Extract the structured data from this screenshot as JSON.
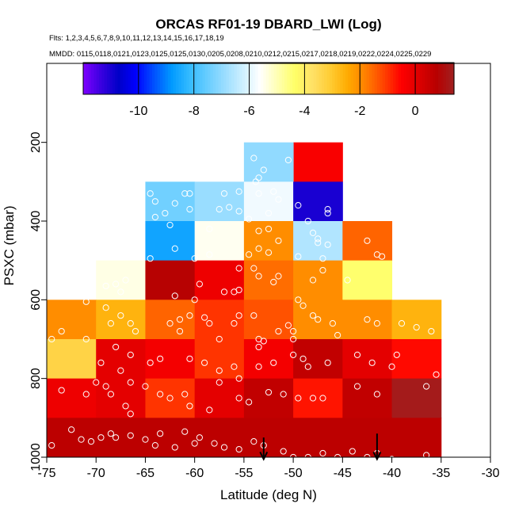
{
  "chart_data": {
    "type": "heatmap",
    "title": "ORCAS RF01-19 DBARD_LWI (Log)",
    "subtitle_flights": "Flts: 1,2,3,4,5,6,7,8,9,10,11,12,13,14,15,16,17,18,19",
    "subtitle_dates": "MMDD: 0115,0118,0121,0123,0125,0125,0130,0205,0208,0210,0212,0215,0217,0218,0219,0222,0224,0225,0229",
    "xlabel": "Latitude (deg N)",
    "ylabel": "PSXC (mbar)",
    "xlim": [
      -75,
      -30
    ],
    "ylim": [
      1000,
      100
    ],
    "y_inverted": true,
    "x_ticks": [
      -75,
      -70,
      -65,
      -60,
      -55,
      -50,
      -45,
      -40,
      -35,
      -30
    ],
    "x_tick_labels": [
      "-75",
      "-70",
      "-65",
      "-60",
      "-55",
      "-50",
      "-45",
      "-40",
      "-35",
      "-30"
    ],
    "y_ticks": [
      200,
      400,
      600,
      800,
      1000
    ],
    "y_tick_labels": [
      "200",
      "400",
      "600",
      "800",
      "1000"
    ],
    "colorbar": {
      "range": [
        -12,
        1.4
      ],
      "ticks": [
        -10,
        -8,
        -6,
        -4,
        -2,
        0
      ],
      "tick_labels": [
        "-10",
        "-8",
        "-6",
        "-4",
        "-2",
        "0"
      ],
      "colors": [
        "#7f00ff",
        "#3a00e0",
        "#0000c8",
        "#0000ff",
        "#0050ff",
        "#0099ff",
        "#33bbff",
        "#66ccff",
        "#99ddff",
        "#ccefff",
        "#ffffff",
        "#ffffb3",
        "#ffff66",
        "#ffe066",
        "#ffcc33",
        "#ffaa00",
        "#ff7f00",
        "#ff4400",
        "#ff0000",
        "#dd0000",
        "#b80000",
        "#a02020"
      ]
    },
    "cells": [
      {
        "x0": -50,
        "x1": -45,
        "y0": 200,
        "y1": 300,
        "value": -0.4
      },
      {
        "x0": -55,
        "x1": -50,
        "y0": 200,
        "y1": 300,
        "value": -7.0
      },
      {
        "x0": -65,
        "x1": -60,
        "y0": 300,
        "y1": 400,
        "value": -7.4
      },
      {
        "x0": -60,
        "x1": -55,
        "y0": 300,
        "y1": 400,
        "value": -6.9
      },
      {
        "x0": -55,
        "x1": -50,
        "y0": 300,
        "y1": 400,
        "value": -5.8
      },
      {
        "x0": -50,
        "x1": -45,
        "y0": 300,
        "y1": 400,
        "value": -11.0
      },
      {
        "x0": -65,
        "x1": -60,
        "y0": 400,
        "y1": 500,
        "value": -8.6
      },
      {
        "x0": -60,
        "x1": -55,
        "y0": 400,
        "y1": 500,
        "value": -5.5
      },
      {
        "x0": -55,
        "x1": -50,
        "y0": 400,
        "y1": 500,
        "value": -2.0
      },
      {
        "x0": -50,
        "x1": -45,
        "y0": 400,
        "y1": 500,
        "value": -6.6
      },
      {
        "x0": -45,
        "x1": -40,
        "y0": 400,
        "y1": 500,
        "value": -1.5
      },
      {
        "x0": -70,
        "x1": -65,
        "y0": 500,
        "y1": 600,
        "value": -5.4
      },
      {
        "x0": -65,
        "x1": -60,
        "y0": 500,
        "y1": 600,
        "value": 0.8
      },
      {
        "x0": -60,
        "x1": -55,
        "y0": 500,
        "y1": 600,
        "value": -0.2
      },
      {
        "x0": -55,
        "x1": -50,
        "y0": 500,
        "y1": 600,
        "value": -1.6
      },
      {
        "x0": -50,
        "x1": -45,
        "y0": 500,
        "y1": 600,
        "value": -2.0
      },
      {
        "x0": -45,
        "x1": -40,
        "y0": 500,
        "y1": 600,
        "value": -4.4
      },
      {
        "x0": -75,
        "x1": -70,
        "y0": 600,
        "y1": 700,
        "value": -2.0
      },
      {
        "x0": -70,
        "x1": -65,
        "y0": 600,
        "y1": 700,
        "value": -2.6
      },
      {
        "x0": -65,
        "x1": -60,
        "y0": 600,
        "y1": 700,
        "value": -1.5
      },
      {
        "x0": -60,
        "x1": -55,
        "y0": 600,
        "y1": 700,
        "value": -1.0
      },
      {
        "x0": -55,
        "x1": -50,
        "y0": 600,
        "y1": 700,
        "value": -1.3
      },
      {
        "x0": -50,
        "x1": -45,
        "y0": 600,
        "y1": 700,
        "value": -2.0
      },
      {
        "x0": -45,
        "x1": -40,
        "y0": 600,
        "y1": 700,
        "value": -2.0
      },
      {
        "x0": -40,
        "x1": -35,
        "y0": 600,
        "y1": 700,
        "value": -2.6
      },
      {
        "x0": -75,
        "x1": -70,
        "y0": 700,
        "y1": 800,
        "value": -3.3
      },
      {
        "x0": -70,
        "x1": -65,
        "y0": 700,
        "y1": 800,
        "value": 0.0
      },
      {
        "x0": -65,
        "x1": -60,
        "y0": 700,
        "y1": 800,
        "value": -0.3
      },
      {
        "x0": -60,
        "x1": -55,
        "y0": 700,
        "y1": 800,
        "value": -1.0
      },
      {
        "x0": -55,
        "x1": -50,
        "y0": 700,
        "y1": 800,
        "value": -0.3
      },
      {
        "x0": -50,
        "x1": -45,
        "y0": 700,
        "y1": 800,
        "value": 0.6
      },
      {
        "x0": -45,
        "x1": -40,
        "y0": 700,
        "y1": 800,
        "value": 0.0
      },
      {
        "x0": -40,
        "x1": -35,
        "y0": 700,
        "y1": 800,
        "value": -0.6
      },
      {
        "x0": -75,
        "x1": -70,
        "y0": 800,
        "y1": 900,
        "value": -0.2
      },
      {
        "x0": -70,
        "x1": -65,
        "y0": 800,
        "y1": 900,
        "value": 0.0
      },
      {
        "x0": -65,
        "x1": -60,
        "y0": 800,
        "y1": 900,
        "value": -1.0
      },
      {
        "x0": -60,
        "x1": -55,
        "y0": 800,
        "y1": 900,
        "value": 0.0
      },
      {
        "x0": -55,
        "x1": -50,
        "y0": 800,
        "y1": 900,
        "value": 0.6
      },
      {
        "x0": -50,
        "x1": -45,
        "y0": 800,
        "y1": 900,
        "value": -0.7
      },
      {
        "x0": -45,
        "x1": -40,
        "y0": 800,
        "y1": 900,
        "value": 0.6
      },
      {
        "x0": -40,
        "x1": -35,
        "y0": 800,
        "y1": 900,
        "value": 1.3
      },
      {
        "x0": -75,
        "x1": -70,
        "y0": 900,
        "y1": 1000,
        "value": 0.7
      },
      {
        "x0": -70,
        "x1": -65,
        "y0": 900,
        "y1": 1000,
        "value": 0.7
      },
      {
        "x0": -65,
        "x1": -60,
        "y0": 900,
        "y1": 1000,
        "value": 0.7
      },
      {
        "x0": -60,
        "x1": -55,
        "y0": 900,
        "y1": 1000,
        "value": 0.7
      },
      {
        "x0": -55,
        "x1": -50,
        "y0": 900,
        "y1": 1000,
        "value": 0.7
      },
      {
        "x0": -50,
        "x1": -45,
        "y0": 900,
        "y1": 1000,
        "value": 0.7
      },
      {
        "x0": -45,
        "x1": -40,
        "y0": 900,
        "y1": 1000,
        "value": 0.7
      },
      {
        "x0": -40,
        "x1": -35,
        "y0": 900,
        "y1": 1000,
        "value": 0.7
      }
    ],
    "points": [
      [
        -50.5,
        245
      ],
      [
        -54.0,
        240
      ],
      [
        -53.5,
        290
      ],
      [
        -53.0,
        270
      ],
      [
        -53.8,
        300
      ],
      [
        -64.5,
        330
      ],
      [
        -61.0,
        330
      ],
      [
        -60.5,
        330
      ],
      [
        -57.0,
        330
      ],
      [
        -55.5,
        325
      ],
      [
        -53.5,
        330
      ],
      [
        -52.0,
        325
      ],
      [
        -51.5,
        345
      ],
      [
        -49.5,
        360
      ],
      [
        -46.5,
        370
      ],
      [
        -64.0,
        350
      ],
      [
        -62.0,
        355
      ],
      [
        -60.5,
        370
      ],
      [
        -57.5,
        370
      ],
      [
        -56.5,
        365
      ],
      [
        -55.5,
        375
      ],
      [
        -52.5,
        380
      ],
      [
        -48.5,
        400
      ],
      [
        -46.5,
        380
      ],
      [
        -63.0,
        380
      ],
      [
        -64.0,
        390
      ],
      [
        -54.5,
        395
      ],
      [
        -62.5,
        410
      ],
      [
        -58.5,
        420
      ],
      [
        -53.5,
        425
      ],
      [
        -52.5,
        420
      ],
      [
        -48.0,
        430
      ],
      [
        -47.5,
        445
      ],
      [
        -47.5,
        455
      ],
      [
        -46.5,
        460
      ],
      [
        -51.5,
        450
      ],
      [
        -53.5,
        470
      ],
      [
        -52.5,
        480
      ],
      [
        -54.5,
        485
      ],
      [
        -58.5,
        485
      ],
      [
        -62.0,
        470
      ],
      [
        -64.5,
        495
      ],
      [
        -60.0,
        495
      ],
      [
        -49.5,
        490
      ],
      [
        -47.0,
        495
      ],
      [
        -42.5,
        450
      ],
      [
        -41.0,
        490
      ],
      [
        -41.5,
        485
      ],
      [
        -54.0,
        520
      ],
      [
        -53.5,
        540
      ],
      [
        -51.5,
        540
      ],
      [
        -52.0,
        555
      ],
      [
        -55.5,
        520
      ],
      [
        -47.0,
        525
      ],
      [
        -48.0,
        550
      ],
      [
        -44.5,
        550
      ],
      [
        -59.5,
        560
      ],
      [
        -57.0,
        580
      ],
      [
        -56.0,
        580
      ],
      [
        -55.5,
        575
      ],
      [
        -67.0,
        550
      ],
      [
        -68.0,
        560
      ],
      [
        -69.0,
        565
      ],
      [
        -67.5,
        580
      ],
      [
        -62.0,
        590
      ],
      [
        -60.0,
        600
      ],
      [
        -49.5,
        600
      ],
      [
        -49.0,
        615
      ],
      [
        -48.0,
        640
      ],
      [
        -71.0,
        605
      ],
      [
        -69.0,
        620
      ],
      [
        -67.5,
        640
      ],
      [
        -66.5,
        660
      ],
      [
        -68.5,
        660
      ],
      [
        -66.0,
        680
      ],
      [
        -62.5,
        660
      ],
      [
        -61.5,
        650
      ],
      [
        -60.5,
        640
      ],
      [
        -61.5,
        680
      ],
      [
        -59.0,
        645
      ],
      [
        -58.5,
        660
      ],
      [
        -57.5,
        700
      ],
      [
        -56.0,
        660
      ],
      [
        -55.5,
        640
      ],
      [
        -54.0,
        640
      ],
      [
        -53.5,
        700
      ],
      [
        -53.0,
        705
      ],
      [
        -53.5,
        720
      ],
      [
        -51.5,
        680
      ],
      [
        -50.5,
        665
      ],
      [
        -50.0,
        680
      ],
      [
        -50.0,
        700
      ],
      [
        -47.5,
        650
      ],
      [
        -46.0,
        660
      ],
      [
        -45.5,
        690
      ],
      [
        -42.5,
        650
      ],
      [
        -41.5,
        660
      ],
      [
        -39.0,
        660
      ],
      [
        -37.5,
        670
      ],
      [
        -36.0,
        680
      ],
      [
        -73.5,
        680
      ],
      [
        -74.5,
        700
      ],
      [
        -71.0,
        700
      ],
      [
        -68.0,
        720
      ],
      [
        -66.5,
        740
      ],
      [
        -69.5,
        760
      ],
      [
        -67.5,
        780
      ],
      [
        -64.5,
        760
      ],
      [
        -63.5,
        750
      ],
      [
        -60.5,
        750
      ],
      [
        -59.0,
        760
      ],
      [
        -57.5,
        780
      ],
      [
        -56.0,
        770
      ],
      [
        -55.5,
        800
      ],
      [
        -53.5,
        770
      ],
      [
        -52.0,
        760
      ],
      [
        -50.0,
        740
      ],
      [
        -49.0,
        750
      ],
      [
        -48.5,
        770
      ],
      [
        -46.5,
        760
      ],
      [
        -43.5,
        740
      ],
      [
        -42.0,
        760
      ],
      [
        -40.0,
        770
      ],
      [
        -39.5,
        740
      ],
      [
        -35.5,
        790
      ],
      [
        -70.0,
        810
      ],
      [
        -69.0,
        820
      ],
      [
        -66.5,
        810
      ],
      [
        -65.0,
        820
      ],
      [
        -73.5,
        830
      ],
      [
        -71.0,
        840
      ],
      [
        -68.5,
        840
      ],
      [
        -67.0,
        870
      ],
      [
        -66.5,
        890
      ],
      [
        -63.5,
        840
      ],
      [
        -62.5,
        850
      ],
      [
        -61.0,
        840
      ],
      [
        -60.5,
        870
      ],
      [
        -58.5,
        880
      ],
      [
        -57.5,
        810
      ],
      [
        -55.5,
        850
      ],
      [
        -54.5,
        860
      ],
      [
        -52.5,
        835
      ],
      [
        -51.0,
        840
      ],
      [
        -49.5,
        850
      ],
      [
        -48.0,
        850
      ],
      [
        -47.0,
        850
      ],
      [
        -43.5,
        820
      ],
      [
        -41.5,
        840
      ],
      [
        -36.5,
        820
      ],
      [
        -72.5,
        930
      ],
      [
        -70.5,
        960
      ],
      [
        -69.5,
        950
      ],
      [
        -68.0,
        950
      ],
      [
        -66.5,
        945
      ],
      [
        -65.0,
        955
      ],
      [
        -63.5,
        940
      ],
      [
        -61.0,
        935
      ],
      [
        -59.5,
        950
      ],
      [
        -58.0,
        965
      ],
      [
        -57.0,
        975
      ],
      [
        -55.5,
        980
      ],
      [
        -54.0,
        960
      ],
      [
        -53.0,
        970
      ],
      [
        -51.0,
        985
      ],
      [
        -50.0,
        1000
      ],
      [
        -48.5,
        1000
      ],
      [
        -47.0,
        990
      ],
      [
        -45.5,
        1000
      ],
      [
        -44.0,
        985
      ],
      [
        -42.5,
        1000
      ],
      [
        -41.5,
        990
      ],
      [
        -40.0,
        1005
      ],
      [
        -36.5,
        995
      ],
      [
        -74.5,
        970
      ],
      [
        -71.5,
        955
      ],
      [
        -68.5,
        940
      ],
      [
        -64.0,
        970
      ],
      [
        -62.0,
        975
      ],
      [
        -60.0,
        965
      ]
    ],
    "arrows": [
      {
        "x": -53,
        "y_from": 950,
        "y_to": 1005
      },
      {
        "x": -41.5,
        "y_from": 940,
        "y_to": 1005
      }
    ]
  }
}
